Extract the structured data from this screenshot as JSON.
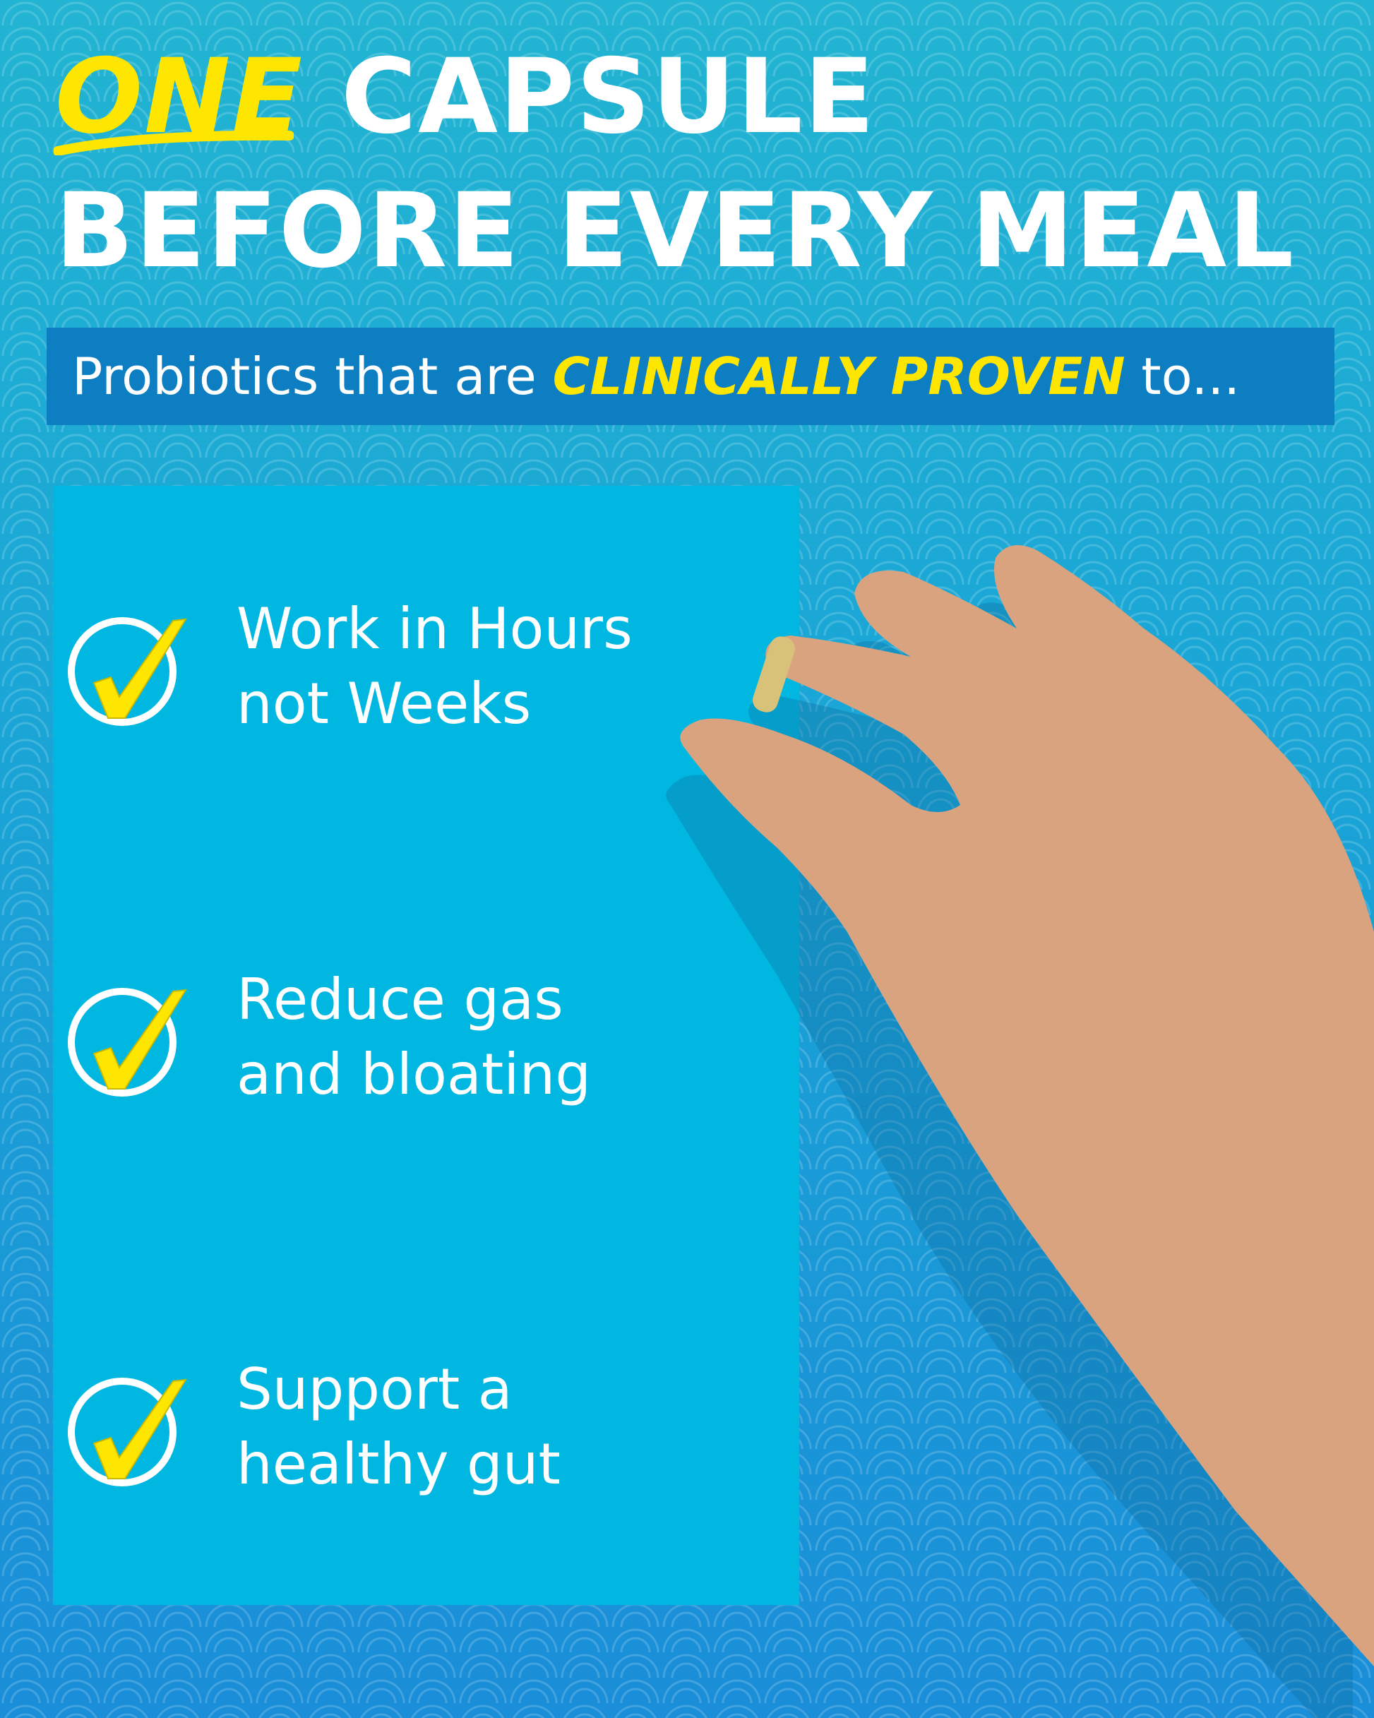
{
  "headline": {
    "emphasis": "ONE",
    "line1_rest": "CAPSULE",
    "line2": "BEFORE EVERY MEAL"
  },
  "banner": {
    "prefix": "Probiotics that are",
    "highlight": "CLINICALLY PROVEN",
    "suffix": "to..."
  },
  "benefits": [
    {
      "line1": "Work in Hours",
      "line2": "not Weeks",
      "icon": "check-circle-icon"
    },
    {
      "line1": "Reduce gas",
      "line2": "and bloating",
      "icon": "check-circle-icon"
    },
    {
      "line1": "Support a",
      "line2": "healthy gut",
      "icon": "check-circle-icon"
    }
  ],
  "colors": {
    "accent_yellow": "#ffe600",
    "panel": "#00b7e1",
    "banner": "#0e7ec3",
    "text": "#ffffff"
  }
}
